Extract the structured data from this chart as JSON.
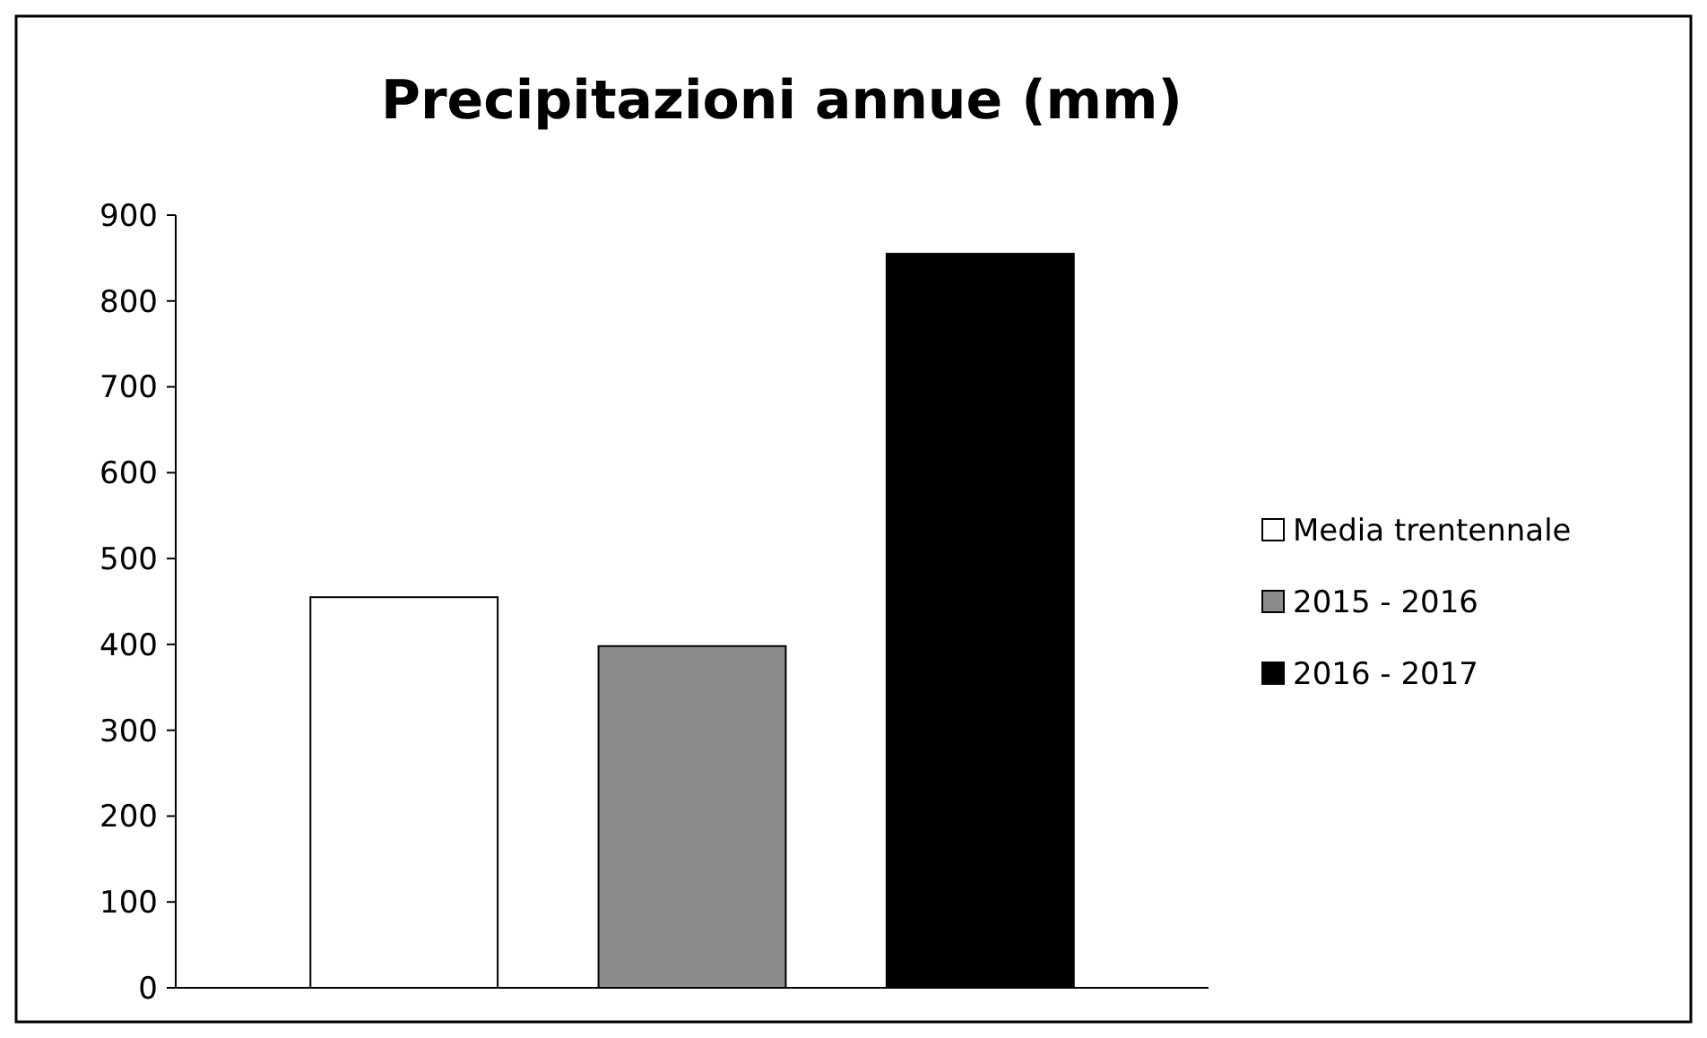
{
  "chart_data": {
    "type": "bar",
    "title": "Precipitazioni  annue (mm)",
    "categories": [
      null
    ],
    "series": [
      {
        "name": "Media trentennale",
        "color": "#ffffff",
        "values": [
          455
        ]
      },
      {
        "name": "2015 - 2016",
        "color": "#8c8c8c",
        "values": [
          398
        ]
      },
      {
        "name": "2016 - 2017",
        "color": "#000000",
        "values": [
          855
        ]
      }
    ],
    "ylim": [
      0,
      900
    ],
    "yticks": [
      0,
      100,
      200,
      300,
      400,
      500,
      600,
      700,
      800,
      900
    ],
    "grid": false,
    "legend": "right"
  }
}
